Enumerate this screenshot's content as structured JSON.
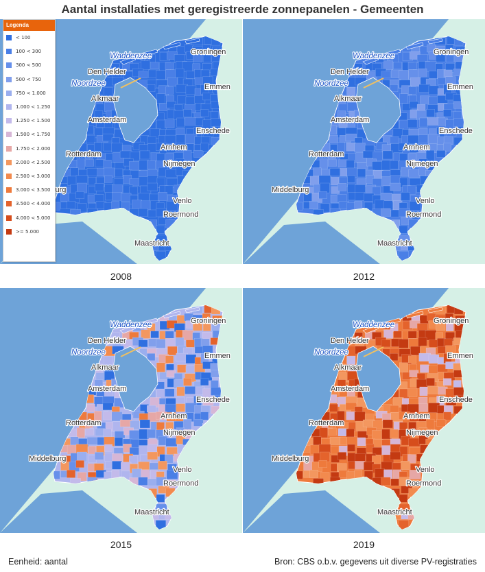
{
  "title": "Aantal installaties met geregistreerde zonnepanelen - Gemeenten",
  "legend": {
    "title": "Legenda",
    "classes": [
      {
        "label": "< 100",
        "color": "#2f6fe0"
      },
      {
        "label": "100 < 300",
        "color": "#4a7fe6"
      },
      {
        "label": "300 < 500",
        "color": "#6690ea"
      },
      {
        "label": "500 < 750",
        "color": "#819fec"
      },
      {
        "label": "750 < 1.000",
        "color": "#9aaeee"
      },
      {
        "label": "1.000 < 1.250",
        "color": "#b0b5ee"
      },
      {
        "label": "1.250 < 1.500",
        "color": "#c3baea"
      },
      {
        "label": "1.500 < 1.750",
        "color": "#d6b6d6"
      },
      {
        "label": "1.750 < 2.000",
        "color": "#e6a7a6"
      },
      {
        "label": "2.000 < 2.500",
        "color": "#f3975f"
      },
      {
        "label": "2.500 < 3.000",
        "color": "#f28a4e"
      },
      {
        "label": "3.000 < 3.500",
        "color": "#ee7a3c"
      },
      {
        "label": "3.500 < 4.000",
        "color": "#e4632c"
      },
      {
        "label": "4.000 < 5.000",
        "color": "#d64d1c"
      },
      {
        "label": ">= 5.000",
        "color": "#c43a12"
      }
    ]
  },
  "panels": [
    {
      "year": "2008",
      "mean_class": 0,
      "spread": 1
    },
    {
      "year": "2012",
      "mean_class": 1,
      "spread": 2
    },
    {
      "year": "2015",
      "mean_class": 5,
      "spread": 6
    },
    {
      "year": "2019",
      "mean_class": 11,
      "spread": 5
    }
  ],
  "places": [
    {
      "name": "Waddenzee",
      "kind": "sea"
    },
    {
      "name": "Groningen",
      "kind": "city"
    },
    {
      "name": "Den Helder",
      "kind": "city"
    },
    {
      "name": "Noordzee",
      "kind": "sea"
    },
    {
      "name": "Emmen",
      "kind": "city"
    },
    {
      "name": "Alkmaar",
      "kind": "city"
    },
    {
      "name": "Amsterdam",
      "kind": "city"
    },
    {
      "name": "Enschede",
      "kind": "city"
    },
    {
      "name": "Arnhem",
      "kind": "city"
    },
    {
      "name": "Rotterdam",
      "kind": "city"
    },
    {
      "name": "Nijmegen",
      "kind": "city"
    },
    {
      "name": "Middelburg",
      "kind": "city"
    },
    {
      "name": "Venlo",
      "kind": "city"
    },
    {
      "name": "Roermond",
      "kind": "city"
    },
    {
      "name": "Maastricht",
      "kind": "city"
    }
  ],
  "colors": {
    "sea": "#6ea3d8",
    "land_outside": "#d6f0e6",
    "border": "#ffffff"
  },
  "footer": {
    "unit": "Eenheid: aantal",
    "source": "Bron: CBS o.b.v. gegevens uit diverse PV-registraties"
  }
}
